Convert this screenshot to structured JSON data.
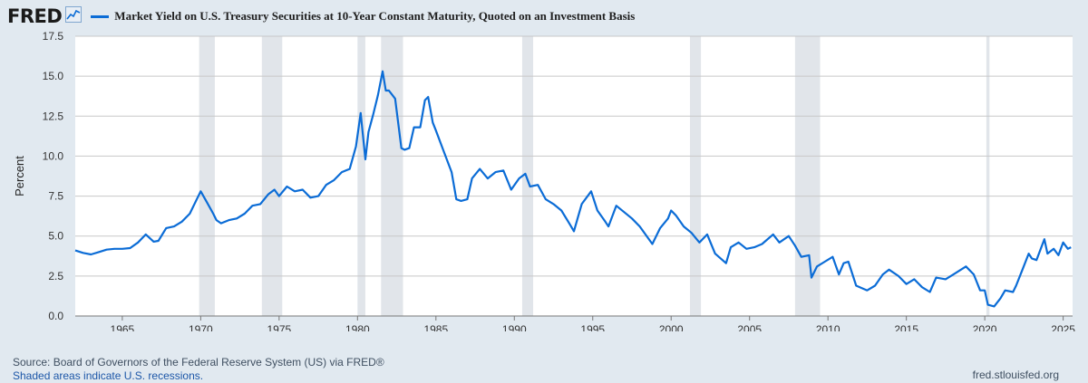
{
  "header": {
    "logo_text": "FRED",
    "logo_icon": "line-chart-icon",
    "series_title": "Market Yield on U.S. Treasury Securities at 10-Year Constant Maturity, Quoted on an Investment Basis"
  },
  "footer": {
    "source": "Source: Board of Governors of the Federal Reserve System (US) via FRED®",
    "note": "Shaded areas indicate U.S. recessions.",
    "site": "fred.stlouisfed.org"
  },
  "colors": {
    "background": "#e1e9f0",
    "plot_background": "#ffffff",
    "line": "#0b6cd6",
    "recession": "#e1e5ea",
    "grid": "#c8c8c8"
  },
  "chart_data": {
    "type": "line",
    "title": "Market Yield on U.S. Treasury Securities at 10-Year Constant Maturity, Quoted on an Investment Basis",
    "xlabel": "",
    "ylabel": "Percent",
    "xlim": [
      1962.0,
      2025.6
    ],
    "ylim": [
      0.0,
      17.5
    ],
    "grid": "horizontal",
    "x_ticks": [
      1965,
      1970,
      1975,
      1980,
      1985,
      1990,
      1995,
      2000,
      2005,
      2010,
      2015,
      2020,
      2025
    ],
    "y_ticks": [
      0.0,
      2.5,
      5.0,
      7.5,
      10.0,
      12.5,
      15.0,
      17.5
    ],
    "y_tick_labels": [
      "0.0",
      "2.5",
      "5.0",
      "7.5",
      "10.0",
      "12.5",
      "15.0",
      "17.5"
    ],
    "recessions": [
      [
        1969.9,
        1970.9
      ],
      [
        1973.9,
        1975.2
      ],
      [
        1980.0,
        1980.5
      ],
      [
        1981.5,
        1982.9
      ],
      [
        1990.5,
        1991.2
      ],
      [
        2001.2,
        2001.9
      ],
      [
        2007.9,
        2009.5
      ],
      [
        2020.1,
        2020.3
      ]
    ],
    "series": [
      {
        "x": [
          1962.0,
          1962.5,
          1963.0,
          1963.5,
          1964.0,
          1964.5,
          1965.0,
          1965.5,
          1966.0,
          1966.5,
          1967.0,
          1967.3,
          1967.8,
          1968.3,
          1968.8,
          1969.3,
          1969.8,
          1970.0,
          1970.4,
          1970.8,
          1971.0,
          1971.3,
          1971.8,
          1972.3,
          1972.8,
          1973.3,
          1973.8,
          1974.3,
          1974.7,
          1975.0,
          1975.5,
          1976.0,
          1976.5,
          1977.0,
          1977.5,
          1978.0,
          1978.5,
          1979.0,
          1979.5,
          1979.9,
          1980.2,
          1980.5,
          1980.7,
          1981.0,
          1981.3,
          1981.6,
          1981.8,
          1982.0,
          1982.4,
          1982.8,
          1983.0,
          1983.3,
          1983.6,
          1984.0,
          1984.3,
          1984.5,
          1984.8,
          1985.0,
          1985.5,
          1986.0,
          1986.3,
          1986.6,
          1987.0,
          1987.3,
          1987.8,
          1988.3,
          1988.8,
          1989.3,
          1989.8,
          1990.3,
          1990.7,
          1991.0,
          1991.5,
          1992.0,
          1992.5,
          1993.0,
          1993.5,
          1993.8,
          1994.3,
          1994.9,
          1995.3,
          1995.8,
          1996.0,
          1996.5,
          1997.0,
          1997.5,
          1998.0,
          1998.8,
          1999.3,
          1999.8,
          2000.0,
          2000.3,
          2000.8,
          2001.3,
          2001.8,
          2002.3,
          2002.8,
          2003.5,
          2003.8,
          2004.3,
          2004.8,
          2005.3,
          2005.8,
          2006.5,
          2006.9,
          2007.5,
          2007.9,
          2008.3,
          2008.8,
          2008.95,
          2009.3,
          2009.8,
          2010.3,
          2010.7,
          2011.0,
          2011.3,
          2011.8,
          2012.5,
          2013.0,
          2013.5,
          2013.9,
          2014.5,
          2015.0,
          2015.5,
          2016.0,
          2016.5,
          2016.9,
          2017.5,
          2018.0,
          2018.8,
          2019.3,
          2019.7,
          2020.0,
          2020.2,
          2020.6,
          2021.0,
          2021.3,
          2021.8,
          2022.0,
          2022.4,
          2022.8,
          2023.0,
          2023.3,
          2023.8,
          2024.0,
          2024.4,
          2024.7,
          2025.0,
          2025.3,
          2025.5
        ],
        "values": [
          4.1,
          3.95,
          3.85,
          4.0,
          4.15,
          4.2,
          4.2,
          4.25,
          4.6,
          5.1,
          4.65,
          4.7,
          5.5,
          5.6,
          5.9,
          6.4,
          7.4,
          7.8,
          7.1,
          6.4,
          6.0,
          5.8,
          6.0,
          6.1,
          6.4,
          6.9,
          7.0,
          7.6,
          7.9,
          7.5,
          8.1,
          7.8,
          7.9,
          7.4,
          7.5,
          8.2,
          8.5,
          9.0,
          9.2,
          10.6,
          12.7,
          9.8,
          11.5,
          12.6,
          13.8,
          15.3,
          14.1,
          14.1,
          13.6,
          10.5,
          10.4,
          10.5,
          11.8,
          11.8,
          13.5,
          13.7,
          12.1,
          11.6,
          10.3,
          9.0,
          7.3,
          7.2,
          7.3,
          8.6,
          9.2,
          8.6,
          9.0,
          9.1,
          7.9,
          8.6,
          8.9,
          8.1,
          8.2,
          7.3,
          7.0,
          6.6,
          5.8,
          5.3,
          7.0,
          7.8,
          6.6,
          5.9,
          5.6,
          6.9,
          6.5,
          6.1,
          5.6,
          4.5,
          5.5,
          6.1,
          6.6,
          6.3,
          5.6,
          5.2,
          4.6,
          5.1,
          3.9,
          3.3,
          4.3,
          4.6,
          4.2,
          4.3,
          4.5,
          5.1,
          4.6,
          5.0,
          4.4,
          3.7,
          3.8,
          2.4,
          3.1,
          3.4,
          3.7,
          2.6,
          3.3,
          3.4,
          1.9,
          1.6,
          1.9,
          2.6,
          2.9,
          2.5,
          2.0,
          2.3,
          1.8,
          1.5,
          2.4,
          2.3,
          2.6,
          3.1,
          2.6,
          1.6,
          1.6,
          0.7,
          0.6,
          1.1,
          1.6,
          1.5,
          1.9,
          2.9,
          3.9,
          3.6,
          3.5,
          4.8,
          3.9,
          4.2,
          3.8,
          4.6,
          4.2,
          4.3
        ]
      }
    ]
  }
}
